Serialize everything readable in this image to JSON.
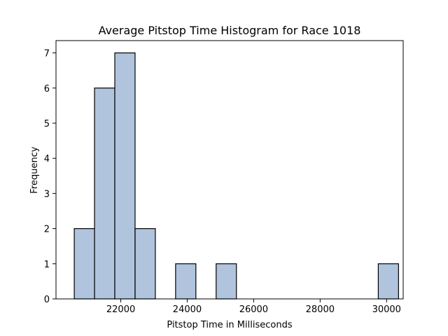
{
  "chart_data": {
    "type": "histogram",
    "title": "Average Pitstop Time Histogram for Race 1018",
    "xlabel": "Pitstop Time in Milliseconds",
    "ylabel": "Frequency",
    "xlim": [
      20050,
      30500
    ],
    "ylim": [
      0,
      7.35
    ],
    "bin_edges": [
      20600,
      21210,
      21820,
      22430,
      23040,
      23650,
      24260,
      24870,
      25480,
      26090,
      26700,
      27310,
      27920,
      28530,
      29140,
      29750,
      30360
    ],
    "counts": [
      2,
      6,
      7,
      2,
      0,
      1,
      0,
      1,
      0,
      0,
      0,
      0,
      0,
      0,
      0,
      1
    ],
    "x_ticks": [
      22000,
      24000,
      26000,
      28000,
      30000
    ],
    "y_ticks": [
      0,
      1,
      2,
      3,
      4,
      5,
      6,
      7
    ],
    "bar_color": "#b0c4de",
    "edge_color": "#000000",
    "grid": false
  }
}
